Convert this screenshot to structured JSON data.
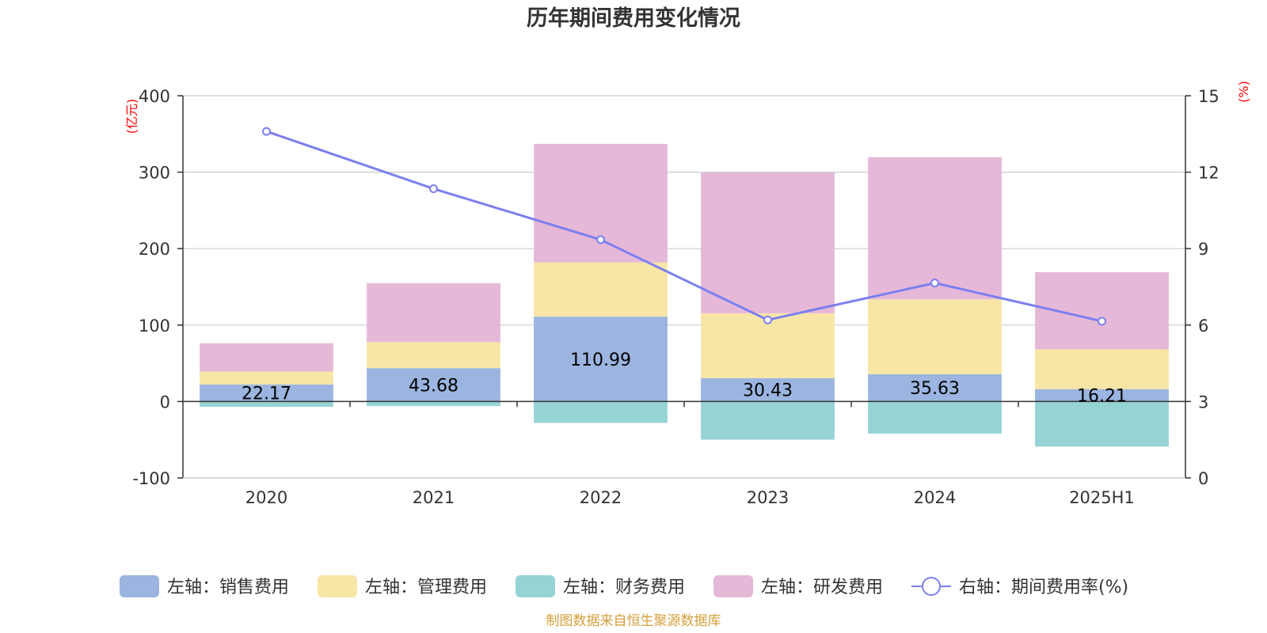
{
  "chart_data": {
    "type": "bar",
    "stacked": true,
    "title": "历年期间费用变化情况",
    "categories": [
      "2020",
      "2021",
      "2022",
      "2023",
      "2024",
      "2025H1"
    ],
    "left_axis": {
      "unit": "(亿元)",
      "ylim": [
        -100,
        400
      ],
      "ticks": [
        "400",
        "300",
        "200",
        "100",
        "0",
        "-100"
      ],
      "tick_values": [
        400,
        300,
        200,
        100,
        0,
        -100
      ]
    },
    "right_axis": {
      "unit": "(%)",
      "ylim": [
        0,
        15
      ],
      "ticks": [
        "15",
        "12",
        "9",
        "6",
        "3",
        "0"
      ],
      "tick_values": [
        15,
        12,
        9,
        6,
        3,
        0
      ]
    },
    "grid": true,
    "legend_position": "bottom",
    "series": [
      {
        "name": "左轴：销售费用",
        "axis": "left",
        "type": "bar",
        "color": "#9bb5e0",
        "values": [
          22.17,
          43.68,
          110.99,
          30.43,
          35.63,
          16.21
        ],
        "labels": [
          "22.17",
          "43.68",
          "110.99",
          "30.43",
          "35.63",
          "16.21"
        ]
      },
      {
        "name": "左轴：管理费用",
        "axis": "left",
        "type": "bar",
        "color": "#f7e6a6",
        "values": [
          17,
          34,
          71,
          85,
          98,
          52
        ]
      },
      {
        "name": "左轴：财务费用",
        "axis": "left",
        "type": "bar",
        "color": "#96d3d5",
        "values": [
          -7,
          -6,
          -28,
          -50,
          -42,
          -59
        ]
      },
      {
        "name": "左轴：研发费用",
        "axis": "left",
        "type": "bar",
        "color": "#e6b8d8",
        "values": [
          37,
          77,
          155,
          184,
          186,
          101
        ]
      },
      {
        "name": "右轴：期间费用率(%)",
        "axis": "right",
        "type": "line",
        "color": "#7b7ff0",
        "values": [
          13.6,
          11.35,
          9.35,
          6.2,
          7.65,
          6.15
        ]
      }
    ],
    "source": "制图数据来自恒生聚源数据库"
  }
}
